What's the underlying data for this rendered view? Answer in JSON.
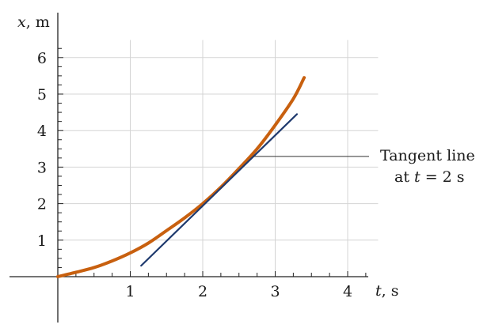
{
  "chart_data": {
    "type": "line",
    "xlabel": {
      "var": "t",
      "unit": ", s"
    },
    "ylabel": {
      "var": "x",
      "unit": ", m"
    },
    "xlim": [
      0,
      4.5
    ],
    "ylim": [
      0,
      6.5
    ],
    "x_ticks": [
      1,
      2,
      3,
      4
    ],
    "y_ticks": [
      1,
      2,
      3,
      4,
      5,
      6
    ],
    "minor_tick_step": 0.25,
    "grid": true,
    "series": [
      {
        "role": "curve",
        "color": "#c8600f",
        "x": [
          0,
          0.25,
          0.5,
          0.75,
          1,
          1.25,
          1.5,
          1.75,
          2,
          2.25,
          2.5,
          2.75,
          3,
          3.25,
          3.4
        ],
        "y": [
          0,
          0.12,
          0.25,
          0.43,
          0.65,
          0.92,
          1.26,
          1.61,
          2.0,
          2.45,
          2.96,
          3.5,
          4.15,
          4.87,
          5.45
        ]
      },
      {
        "role": "tangent",
        "color": "#1f3a6e",
        "x": [
          1.15,
          3.3
        ],
        "y": [
          0.3,
          4.45
        ]
      }
    ],
    "annotation": {
      "line1": "Tangent line",
      "line2_var": "t",
      "line2_rest": " = 2 s",
      "line2_prefix": "at "
    }
  }
}
